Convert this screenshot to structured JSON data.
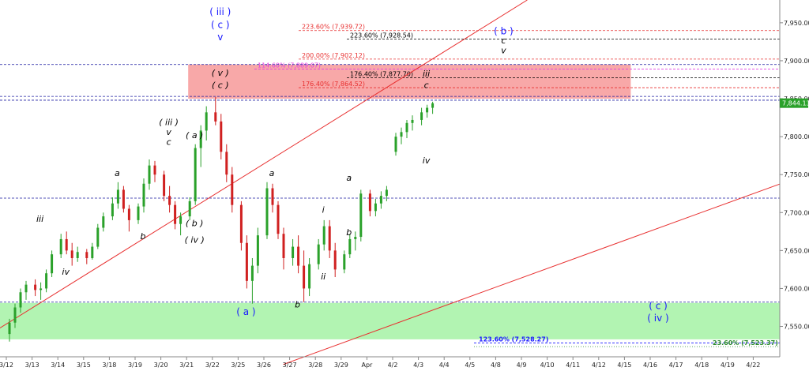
{
  "chart_data": {
    "type": "candlestick",
    "ylim": [
      7510,
      7980
    ],
    "y_ticks": [
      "7,950.00",
      "7,900.00",
      "7,850.00",
      "7,800.00",
      "7,750.00",
      "7,700.00",
      "7,650.00",
      "7,600.00",
      "7,550.00"
    ],
    "x_ticks": [
      "3/12",
      "3/13",
      "3/14",
      "3/15",
      "3/18",
      "3/19",
      "3/20",
      "3/21",
      "3/22",
      "3/25",
      "3/26",
      "3/27",
      "3/28",
      "3/29",
      "Apr",
      "4/2",
      "4/3",
      "4/4",
      "4/5",
      "4/8",
      "4/9",
      "4/10",
      "4/11",
      "4/12",
      "4/15",
      "4/16",
      "4/17",
      "4/18",
      "4/19",
      "4/22"
    ],
    "last_price_label": "7,844.13",
    "last_price": 7844.13,
    "series": [
      {
        "date": "3/12",
        "ohlc": [
          [
            7540,
            7560,
            7530,
            7555
          ],
          [
            7555,
            7580,
            7548,
            7575
          ],
          [
            7575,
            7600,
            7568,
            7595
          ],
          [
            7595,
            7610,
            7585,
            7605
          ]
        ]
      },
      {
        "date": "3/13",
        "ohlc": [
          [
            7605,
            7612,
            7590,
            7598
          ],
          [
            7598,
            7608,
            7585,
            7600
          ],
          [
            7600,
            7625,
            7595,
            7620
          ],
          [
            7620,
            7650,
            7615,
            7645
          ]
        ]
      },
      {
        "date": "3/14",
        "ohlc": [
          [
            7645,
            7672,
            7640,
            7665
          ],
          [
            7665,
            7675,
            7645,
            7650
          ],
          [
            7650,
            7660,
            7630,
            7640
          ],
          [
            7640,
            7655,
            7635,
            7648
          ]
        ]
      },
      {
        "date": "3/15",
        "ohlc": [
          [
            7648,
            7652,
            7632,
            7640
          ],
          [
            7640,
            7660,
            7638,
            7655
          ],
          [
            7655,
            7685,
            7652,
            7680
          ],
          [
            7680,
            7700,
            7675,
            7695
          ]
        ]
      },
      {
        "date": "3/18",
        "ohlc": [
          [
            7695,
            7720,
            7690,
            7712
          ],
          [
            7712,
            7740,
            7705,
            7730
          ],
          [
            7730,
            7735,
            7700,
            7705
          ],
          [
            7705,
            7710,
            7675,
            7690
          ]
        ]
      },
      {
        "date": "3/19",
        "ohlc": [
          [
            7690,
            7712,
            7685,
            7708
          ],
          [
            7708,
            7745,
            7700,
            7738
          ],
          [
            7738,
            7770,
            7730,
            7762
          ],
          [
            7762,
            7768,
            7740,
            7750
          ]
        ]
      },
      {
        "date": "3/20",
        "ohlc": [
          [
            7750,
            7755,
            7715,
            7722
          ],
          [
            7722,
            7735,
            7700,
            7710
          ],
          [
            7710,
            7715,
            7678,
            7685
          ],
          [
            7685,
            7700,
            7670,
            7695
          ]
        ]
      },
      {
        "date": "3/21",
        "ohlc": [
          [
            7695,
            7720,
            7690,
            7715
          ],
          [
            7715,
            7790,
            7710,
            7785
          ],
          [
            7785,
            7815,
            7760,
            7808
          ],
          [
            7808,
            7840,
            7795,
            7832
          ]
        ]
      },
      {
        "date": "3/22",
        "ohlc": [
          [
            7832,
            7852,
            7815,
            7820
          ],
          [
            7820,
            7830,
            7770,
            7780
          ],
          [
            7780,
            7790,
            7740,
            7750
          ],
          [
            7750,
            7760,
            7700,
            7710
          ]
        ]
      },
      {
        "date": "3/25",
        "ohlc": [
          [
            7710,
            7715,
            7650,
            7660
          ],
          [
            7660,
            7670,
            7600,
            7610
          ],
          [
            7610,
            7640,
            7580,
            7630
          ],
          [
            7630,
            7680,
            7620,
            7670
          ]
        ]
      },
      {
        "date": "3/26",
        "ohlc": [
          [
            7670,
            7740,
            7665,
            7732
          ],
          [
            7732,
            7738,
            7700,
            7710
          ],
          [
            7710,
            7715,
            7665,
            7672
          ],
          [
            7672,
            7680,
            7625,
            7640
          ]
        ]
      },
      {
        "date": "3/27",
        "ohlc": [
          [
            7640,
            7665,
            7630,
            7655
          ],
          [
            7655,
            7670,
            7620,
            7630
          ],
          [
            7630,
            7650,
            7582,
            7600
          ],
          [
            7600,
            7640,
            7590,
            7632
          ]
        ]
      },
      {
        "date": "3/28",
        "ohlc": [
          [
            7632,
            7665,
            7625,
            7658
          ],
          [
            7658,
            7690,
            7650,
            7682
          ],
          [
            7682,
            7690,
            7640,
            7650
          ],
          [
            7650,
            7660,
            7615,
            7625
          ]
        ]
      },
      {
        "date": "3/29",
        "ohlc": [
          [
            7625,
            7650,
            7620,
            7645
          ],
          [
            7645,
            7672,
            7640,
            7665
          ],
          [
            7665,
            7675,
            7650,
            7668
          ],
          [
            7668,
            7730,
            7662,
            7725
          ]
        ]
      },
      {
        "date": "Apr",
        "ohlc": [
          [
            7725,
            7730,
            7695,
            7702
          ],
          [
            7702,
            7718,
            7695,
            7712
          ],
          [
            7712,
            7728,
            7705,
            7722
          ],
          [
            7722,
            7735,
            7715,
            7730
          ]
        ]
      },
      {
        "date": "4/2",
        "ohlc": [
          [
            7780,
            7805,
            7775,
            7800
          ],
          [
            7800,
            7812,
            7790,
            7806
          ],
          [
            7806,
            7822,
            7798,
            7818
          ],
          [
            7818,
            7828,
            7808,
            7822
          ]
        ]
      },
      {
        "date": "4/3",
        "ohlc": [
          [
            7822,
            7838,
            7815,
            7832
          ],
          [
            7832,
            7842,
            7825,
            7838
          ],
          [
            7838,
            7846,
            7830,
            7844
          ]
        ]
      }
    ],
    "zones": [
      {
        "name": "target-resistance-zone",
        "from": 7850,
        "to": 7895,
        "color": "#f8a8a8",
        "x_from": "3/21",
        "x_to": "4/15"
      },
      {
        "name": "target-support-zone",
        "from": 7533,
        "to": 7581,
        "color": "#b2f4b2"
      }
    ],
    "horizontal_levels": [
      {
        "y": 7939.72,
        "label": "223.60% (7,939.72)",
        "color": "#e83030",
        "style": "dashed"
      },
      {
        "y": 7928.54,
        "label": "223.60% (7,928.54)",
        "color": "#000000",
        "style": "dashed"
      },
      {
        "y": 7902.12,
        "label": "200.00% (7,902.12)",
        "color": "#e83030",
        "style": "dashed"
      },
      {
        "y": 7889.07,
        "label": "114.60% (7,889.07)",
        "color": "#e040e0",
        "style": "dashed"
      },
      {
        "y": 7877.7,
        "label": "176.40% (7,877.70)",
        "color": "#000000",
        "style": "dashed"
      },
      {
        "y": 7864.52,
        "label": "176.40% (7,864.52)",
        "color": "#e83030",
        "style": "dashed"
      },
      {
        "y": 7895,
        "label": "",
        "color": "#1a1aa0",
        "style": "dashed"
      },
      {
        "y": 7853,
        "label": "",
        "color": "#1a1aa0",
        "style": "dashed"
      },
      {
        "y": 7848,
        "label": "",
        "color": "#1a1aa0",
        "style": "dashed"
      },
      {
        "y": 7719,
        "label": "",
        "color": "#1a1aa0",
        "style": "dashed"
      },
      {
        "y": 7582,
        "label": "",
        "color": "#1a1aa0",
        "style": "dashed"
      },
      {
        "y": 7528.27,
        "label": "123.60% (7,528.27)",
        "color": "#1a1aff",
        "style": "dashed"
      },
      {
        "y": 7523.37,
        "label": "23.60% (7,523.37)",
        "color": "#2a8a2a",
        "style": "dotted"
      }
    ],
    "trendlines": [
      {
        "from": [
          "3/12",
          7548
        ],
        "to": [
          "4/8",
          7980
        ],
        "color": "#e83030"
      },
      {
        "from": [
          "3/27",
          7500
        ],
        "to": [
          "4/22",
          7740
        ],
        "color": "#e83030"
      }
    ],
    "wave_labels": [
      {
        "text": "iii",
        "at": [
          "3/13",
          7688
        ],
        "style": "italic"
      },
      {
        "text": "iv",
        "at": [
          "3/14",
          7618
        ],
        "style": "italic"
      },
      {
        "text": "a",
        "at": [
          "3/18",
          7748
        ],
        "style": "italic"
      },
      {
        "text": "b",
        "at": [
          "3/19",
          7665
        ],
        "style": "italic"
      },
      {
        "text": "( iii )",
        "at": [
          "3/20",
          7815
        ],
        "style": "italic"
      },
      {
        "text": "v",
        "at": [
          "3/20",
          7802
        ],
        "style": "italic"
      },
      {
        "text": "c",
        "at": [
          "3/20",
          7789
        ],
        "style": "italic"
      },
      {
        "text": "( a )",
        "at": [
          "3/21",
          7798
        ],
        "style": "italic"
      },
      {
        "text": "( b )",
        "at": [
          "3/21",
          7682
        ],
        "style": "italic"
      },
      {
        "text": "( iv )",
        "at": [
          "3/21",
          7660
        ],
        "style": "italic"
      },
      {
        "text": "( v )",
        "at": [
          "3/22",
          7880
        ],
        "style": "italic"
      },
      {
        "text": "( c )",
        "at": [
          "3/22",
          7864
        ],
        "style": "italic"
      },
      {
        "text": "( iii )",
        "at": [
          "3/22",
          7960
        ],
        "style": "blue"
      },
      {
        "text": "( c )",
        "at": [
          "3/22",
          7943
        ],
        "style": "blue"
      },
      {
        "text": "v",
        "at": [
          "3/22",
          7927
        ],
        "style": "blue"
      },
      {
        "text": "( a )",
        "at": [
          "3/25",
          7565
        ],
        "style": "blue"
      },
      {
        "text": "a",
        "at": [
          "3/26",
          7748
        ],
        "style": "italic"
      },
      {
        "text": "b",
        "at": [
          "3/27",
          7575
        ],
        "style": "italic"
      },
      {
        "text": "i",
        "at": [
          "3/28",
          7700
        ],
        "style": "italic"
      },
      {
        "text": "ii",
        "at": [
          "3/28",
          7612
        ],
        "style": "italic"
      },
      {
        "text": "a",
        "at": [
          "3/29",
          7742
        ],
        "style": "italic"
      },
      {
        "text": "b",
        "at": [
          "3/29",
          7670
        ],
        "style": "italic"
      },
      {
        "text": "iii",
        "at": [
          "4/3",
          7879
        ],
        "style": "italic"
      },
      {
        "text": "c",
        "at": [
          "4/3",
          7864
        ],
        "style": "italic"
      },
      {
        "text": "iv",
        "at": [
          "4/3",
          7765
        ],
        "style": "italic"
      },
      {
        "text": "( b )",
        "at": [
          "4/8",
          7935
        ],
        "style": "blue"
      },
      {
        "text": "c",
        "at": [
          "4/8",
          7923
        ],
        "style": "italic"
      },
      {
        "text": "v",
        "at": [
          "4/8",
          7910
        ],
        "style": "italic"
      },
      {
        "text": "( c )",
        "at": [
          "4/16",
          7573
        ],
        "style": "blue"
      },
      {
        "text": "( iv )",
        "at": [
          "4/16",
          7557
        ],
        "style": "blue"
      }
    ]
  }
}
